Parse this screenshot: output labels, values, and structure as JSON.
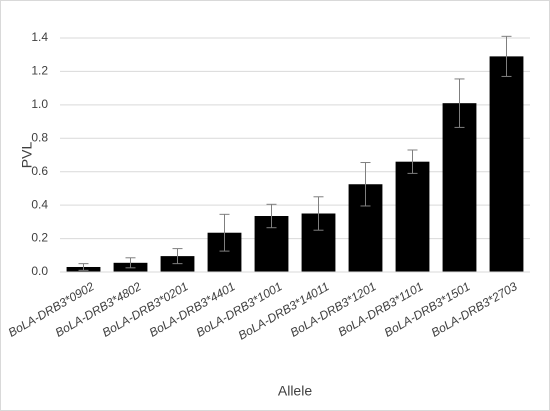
{
  "chart_data": {
    "type": "bar",
    "x_label": "Allele",
    "y_label": "PVL",
    "categories": [
      "BoLA-DRB3*0902",
      "BoLA-DRB3*4802",
      "BoLA-DRB3*0201",
      "BoLA-DRB3*4401",
      "BoLA-DRB3*1001",
      "BoLA-DRB3*14011",
      "BoLA-DRB3*1201",
      "BoLA-DRB3*1101",
      "BoLA-DRB3*1501",
      "BoLA-DRB3*2703"
    ],
    "values": [
      0.03,
      0.055,
      0.095,
      0.235,
      0.335,
      0.35,
      0.525,
      0.66,
      1.01,
      1.29
    ],
    "errors": [
      0.02,
      0.03,
      0.045,
      0.11,
      0.07,
      0.1,
      0.13,
      0.07,
      0.145,
      0.12
    ],
    "color": "#000000",
    "ylim": [
      0,
      1.4
    ],
    "yticks": [
      {
        "value": 0,
        "label": "0.0"
      },
      0.2,
      0.4,
      0.6,
      0.8,
      {
        "value": 1,
        "label": "1.0"
      },
      1.2,
      1.4
    ],
    "grid": true
  }
}
